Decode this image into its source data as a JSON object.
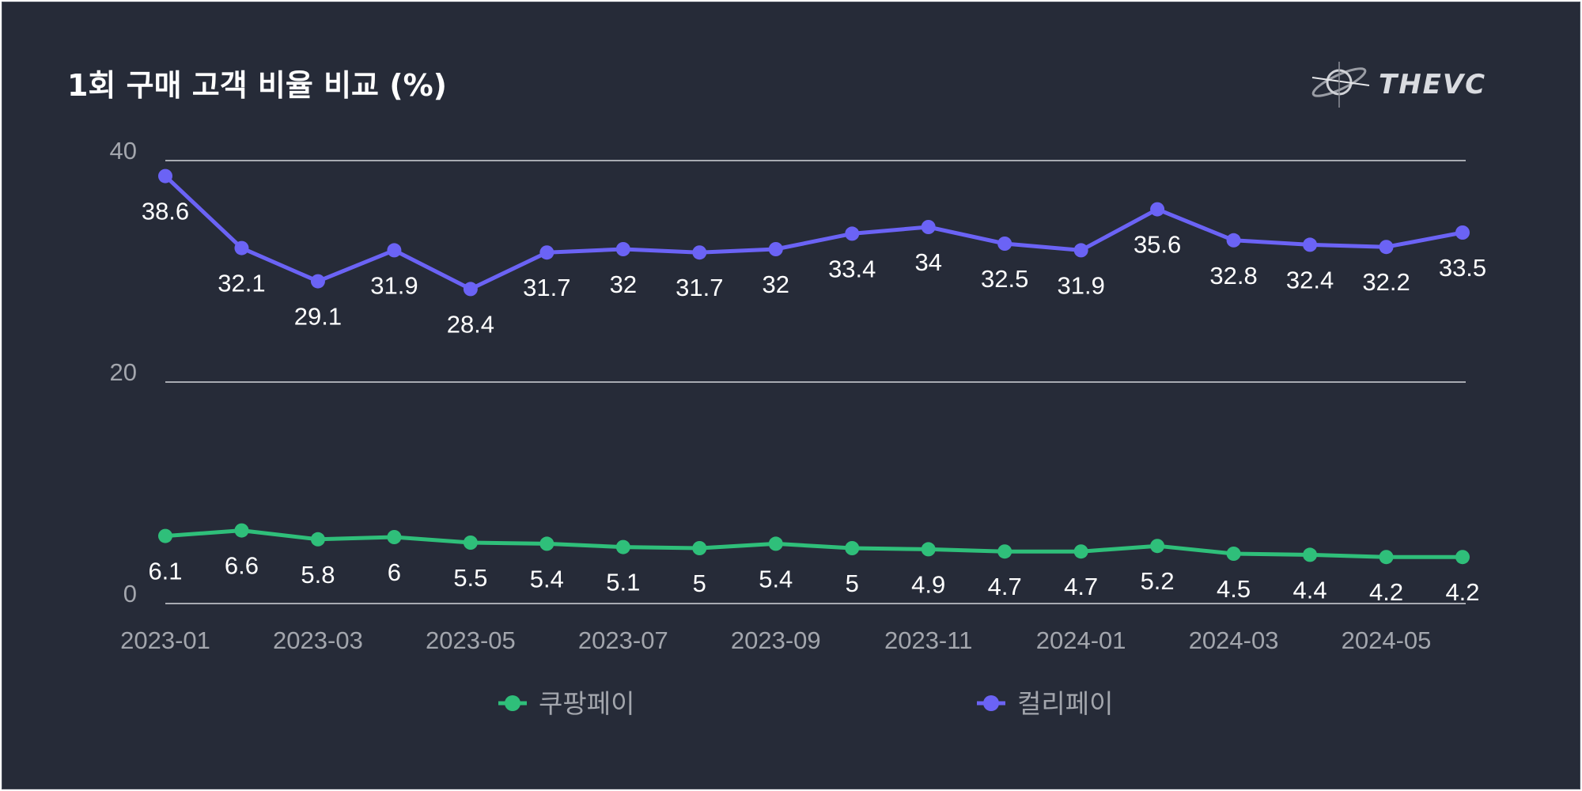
{
  "brand": {
    "name": "THEVC"
  },
  "colors": {
    "background": "#262b38",
    "grid": "#d4d6db",
    "axis_text": "#a3a6ad",
    "label_text": "#ffffff"
  },
  "chart_data": {
    "type": "line",
    "title": "1회 구매 고객 비율 비교 (%)",
    "x": [
      "2023-01",
      "2023-02",
      "2023-03",
      "2023-04",
      "2023-05",
      "2023-06",
      "2023-07",
      "2023-08",
      "2023-09",
      "2023-10",
      "2023-11",
      "2023-12",
      "2024-01",
      "2024-02",
      "2024-03",
      "2024-04",
      "2024-05",
      "2024-06"
    ],
    "x_tick_labels": [
      "2023-01",
      "2023-03",
      "2023-05",
      "2023-07",
      "2023-09",
      "2023-11",
      "2024-01",
      "2024-03",
      "2024-05"
    ],
    "y_ticks": [
      "0",
      "20",
      "40"
    ],
    "ylim": [
      0,
      40
    ],
    "grid": true,
    "legend_position": "bottom",
    "series": [
      {
        "name": "쿠팡페이",
        "color": "#2fbf7a",
        "values": [
          6.1,
          6.6,
          5.8,
          6,
          5.5,
          5.4,
          5.1,
          5,
          5.4,
          5,
          4.9,
          4.7,
          4.7,
          5.2,
          4.5,
          4.4,
          4.2,
          4.2
        ],
        "labels": [
          "6.1",
          "6.6",
          "5.8",
          "6",
          "5.5",
          "5.4",
          "5.1",
          "5",
          "5.4",
          "5",
          "4.9",
          "4.7",
          "4.7",
          "5.2",
          "4.5",
          "4.4",
          "4.2",
          "4.2"
        ]
      },
      {
        "name": "컬리페이",
        "color": "#6b63f5",
        "values": [
          38.6,
          32.1,
          29.1,
          31.9,
          28.4,
          31.7,
          32,
          31.7,
          32,
          33.4,
          34,
          32.5,
          31.9,
          35.6,
          32.8,
          32.4,
          32.2,
          33.5
        ],
        "labels": [
          "38.6",
          "32.1",
          "29.1",
          "31.9",
          "28.4",
          "31.7",
          "32",
          "31.7",
          "32",
          "33.4",
          "34",
          "32.5",
          "31.9",
          "35.6",
          "32.8",
          "32.4",
          "32.2",
          "33.5"
        ]
      }
    ]
  }
}
